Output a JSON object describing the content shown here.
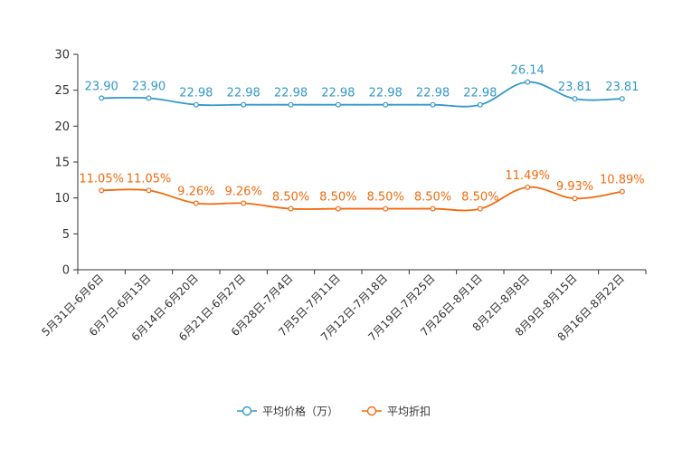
{
  "chart_data": {
    "type": "line",
    "categories": [
      "5月31日-6月6日",
      "6月7日-6月13日",
      "6月14日-6月20日",
      "6月21日-6月27日",
      "6月28日-7月4日",
      "7月5日-7月11日",
      "7月12日-7月18日",
      "7月19日-7月25日",
      "7月26日-8月1日",
      "8月2日-8月8日",
      "8月9日-8月15日",
      "8月16日-8月22日"
    ],
    "ylim": [
      0,
      30
    ],
    "yticks": [
      "0",
      "5",
      "10",
      "15",
      "20",
      "25",
      "30"
    ],
    "series": [
      {
        "name": "平均价格（万）",
        "color": "#3398cc",
        "values": [
          23.9,
          23.9,
          22.98,
          22.98,
          22.98,
          22.98,
          22.98,
          22.98,
          22.98,
          26.14,
          23.81,
          23.81
        ],
        "labels": [
          "23.90",
          "23.90",
          "22.98",
          "22.98",
          "22.98",
          "22.98",
          "22.98",
          "22.98",
          "22.98",
          "26.14",
          "23.81",
          "23.81"
        ]
      },
      {
        "name": "平均折扣",
        "color": "#f26b0f",
        "values": [
          11.05,
          11.05,
          9.26,
          9.26,
          8.5,
          8.5,
          8.5,
          8.5,
          8.5,
          11.49,
          9.93,
          10.89
        ],
        "labels": [
          "11.05%",
          "11.05%",
          "9.26%",
          "9.26%",
          "8.50%",
          "8.50%",
          "8.50%",
          "8.50%",
          "8.50%",
          "11.49%",
          "9.93%",
          "10.89%"
        ]
      }
    ]
  }
}
